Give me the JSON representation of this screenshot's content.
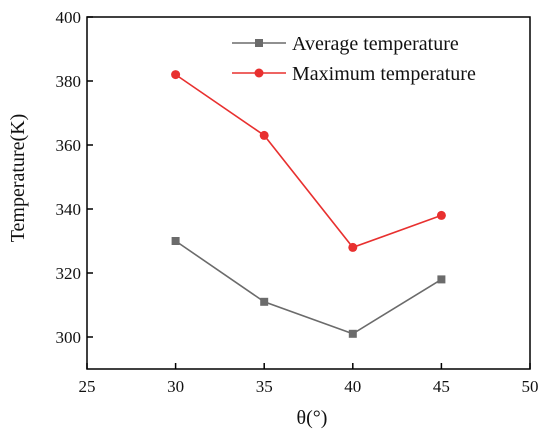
{
  "chart_data": {
    "type": "line",
    "xlabel": "θ(°)",
    "ylabel": "Temperature(K)",
    "xlim": [
      25,
      50
    ],
    "ylim": [
      290,
      400
    ],
    "xticks": [
      25,
      30,
      35,
      40,
      45,
      50
    ],
    "yticks": [
      300,
      320,
      340,
      360,
      380,
      400
    ],
    "grid": false,
    "legend_position": "top-right",
    "x": [
      30,
      35,
      40,
      45
    ],
    "series": [
      {
        "name": "Average temperature",
        "values": [
          330,
          311,
          301,
          318
        ],
        "color": "#6b6b6b",
        "marker": "square"
      },
      {
        "name": "Maximum temperature",
        "values": [
          382,
          363,
          328,
          338
        ],
        "color": "#e8302f",
        "marker": "circle"
      }
    ]
  }
}
